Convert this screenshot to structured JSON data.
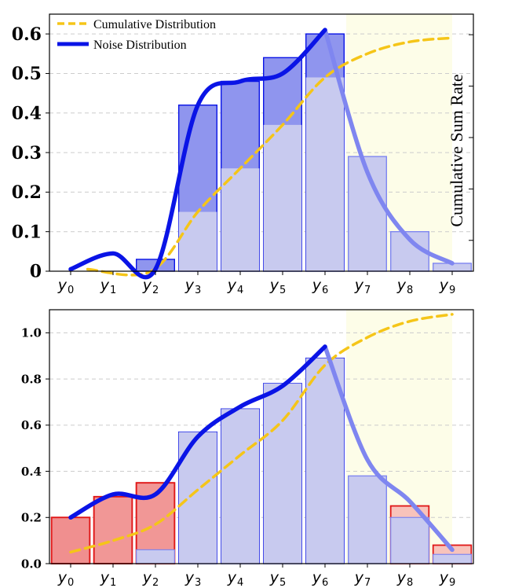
{
  "colors": {
    "blue": "#0a14e6",
    "blue_light": "#7f86f0",
    "bar_dark_fill": "#8f95ee",
    "bar_light_fill": "#c8caef",
    "red_fill": "#f08f8f",
    "red_light_fill": "#f8c3bb",
    "red_edge": "#e01818",
    "cumulative": "#f5c518",
    "shade": "#fdfde8",
    "grid": "#cccccc"
  },
  "chart_data": [
    {
      "type": "bar",
      "legend": {
        "position": "top-left",
        "entries": [
          {
            "label": "Cumulative Distribution",
            "style": "dashed-yellow"
          },
          {
            "label": "Noise Distribution",
            "style": "solid-blue"
          }
        ]
      },
      "ylabel_right": "Cumulative Sum Rate",
      "categories": [
        "y0",
        "y1",
        "y2",
        "y3",
        "y4",
        "y5",
        "y6",
        "y7",
        "y8",
        "y9"
      ],
      "category_labels": [
        {
          "base": "y",
          "sub": "0"
        },
        {
          "base": "y",
          "sub": "1"
        },
        {
          "base": "y",
          "sub": "2"
        },
        {
          "base": "y",
          "sub": "3"
        },
        {
          "base": "y",
          "sub": "4"
        },
        {
          "base": "y",
          "sub": "5"
        },
        {
          "base": "y",
          "sub": "6"
        },
        {
          "base": "y",
          "sub": "7"
        },
        {
          "base": "y",
          "sub": "8"
        },
        {
          "base": "y",
          "sub": "9"
        }
      ],
      "ylim": [
        0,
        0.65
      ],
      "yticks": [
        0,
        0.1,
        0.2,
        0.3,
        0.4,
        0.5,
        0.6
      ],
      "ytick_labels": [
        "0",
        "0.1",
        "0.2",
        "0.3",
        "0.4",
        "0.5",
        "0.6"
      ],
      "values": [
        0.0,
        0.0,
        0.03,
        0.42,
        0.48,
        0.54,
        0.6,
        0.29,
        0.1,
        0.02
      ],
      "cumulative_overlay": [
        0.0,
        0.0,
        0.0,
        0.15,
        0.26,
        0.37,
        0.49,
        0.55,
        0.58,
        0.59
      ],
      "noise_curve": [
        0.005,
        0.045,
        0.005,
        0.42,
        0.48,
        0.5,
        0.61,
        0.25,
        0.08,
        0.02
      ],
      "shaded_from_category": "y7"
    },
    {
      "type": "bar",
      "categories": [
        "y0",
        "y1",
        "y2",
        "y3",
        "y4",
        "y5",
        "y6",
        "y7",
        "y8",
        "y9"
      ],
      "category_labels": [
        {
          "base": "y",
          "sub": "0"
        },
        {
          "base": "y",
          "sub": "1"
        },
        {
          "base": "y",
          "sub": "2"
        },
        {
          "base": "y",
          "sub": "3"
        },
        {
          "base": "y",
          "sub": "4"
        },
        {
          "base": "y",
          "sub": "5"
        },
        {
          "base": "y",
          "sub": "6"
        },
        {
          "base": "y",
          "sub": "7"
        },
        {
          "base": "y",
          "sub": "8"
        },
        {
          "base": "y",
          "sub": "9"
        }
      ],
      "ylim": [
        0,
        1.1
      ],
      "yticks": [
        0,
        0.2,
        0.4,
        0.6,
        0.8,
        1.0
      ],
      "ytick_labels": [
        "0.0",
        "0.2",
        "0.4",
        "0.6",
        "0.8",
        "1.0"
      ],
      "values": [
        0.2,
        0.29,
        0.35,
        0.57,
        0.67,
        0.78,
        0.89,
        0.38,
        0.25,
        0.08
      ],
      "cumulative_overlay": [
        0.0,
        0.0,
        0.06,
        0.57,
        0.67,
        0.78,
        0.89,
        0.38,
        0.2,
        0.04
      ],
      "red_bars": [
        0.2,
        0.29,
        0.35,
        0,
        0,
        0,
        0,
        0,
        0.25,
        0.08
      ],
      "noise_curve": [
        0.2,
        0.3,
        0.3,
        0.55,
        0.68,
        0.77,
        0.94,
        0.45,
        0.27,
        0.06
      ],
      "cumulative_curve": [
        0.05,
        0.1,
        0.17,
        0.32,
        0.47,
        0.62,
        0.86,
        0.98,
        1.05,
        1.08
      ],
      "shaded_from_category": "y7"
    }
  ]
}
